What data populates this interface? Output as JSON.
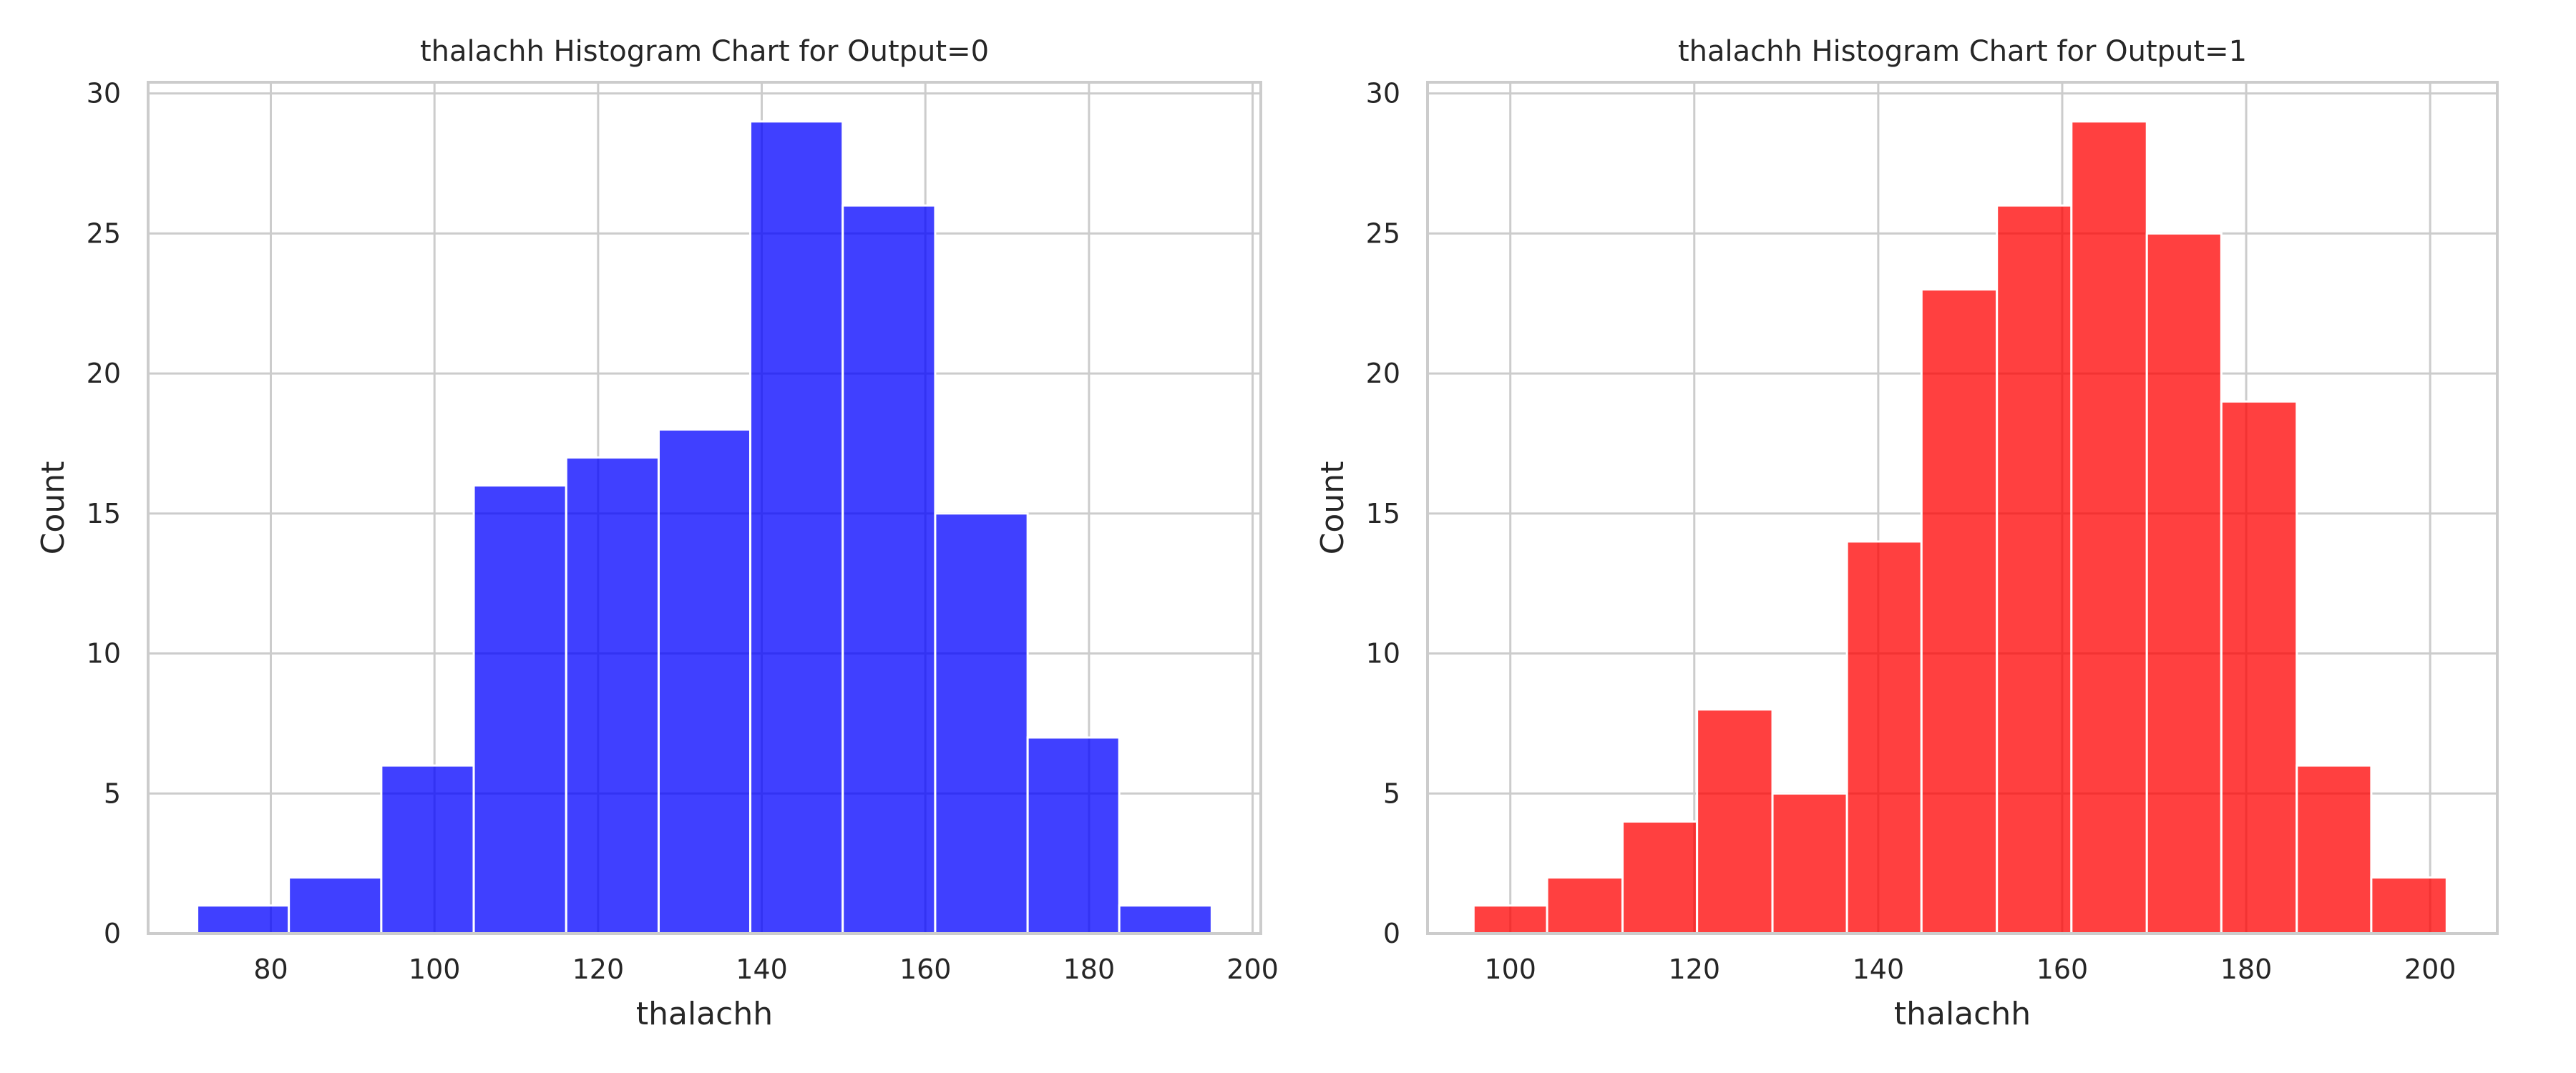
{
  "chart_data": [
    {
      "type": "bar",
      "title": "thalachh Histogram Chart for Output=0",
      "xlabel": "thalachh",
      "ylabel": "Count",
      "color": "#0000ff",
      "bar_opacity": 0.75,
      "xlim": [
        65,
        201
      ],
      "ylim": [
        0,
        30.4
      ],
      "xticks": [
        80,
        100,
        120,
        140,
        160,
        180,
        200
      ],
      "yticks": [
        0,
        5,
        10,
        15,
        20,
        25,
        30
      ],
      "grid": true,
      "bins": [
        {
          "start": 71.0,
          "end": 82.2,
          "count": 1
        },
        {
          "start": 82.2,
          "end": 93.5,
          "count": 2
        },
        {
          "start": 93.5,
          "end": 104.8,
          "count": 6
        },
        {
          "start": 104.8,
          "end": 116.1,
          "count": 16
        },
        {
          "start": 116.1,
          "end": 127.4,
          "count": 17
        },
        {
          "start": 127.4,
          "end": 138.6,
          "count": 18
        },
        {
          "start": 138.6,
          "end": 149.9,
          "count": 29
        },
        {
          "start": 149.9,
          "end": 161.2,
          "count": 26
        },
        {
          "start": 161.2,
          "end": 172.5,
          "count": 15
        },
        {
          "start": 172.5,
          "end": 183.7,
          "count": 7
        },
        {
          "start": 183.7,
          "end": 195.0,
          "count": 1
        }
      ]
    },
    {
      "type": "bar",
      "title": "thalachh Histogram Chart for Output=1",
      "xlabel": "thalachh",
      "ylabel": "Count",
      "color": "#ff0000",
      "bar_opacity": 0.75,
      "xlim": [
        91,
        207.3
      ],
      "ylim": [
        0,
        30.4
      ],
      "xticks": [
        100,
        120,
        140,
        160,
        180,
        200
      ],
      "yticks": [
        0,
        5,
        10,
        15,
        20,
        25,
        30
      ],
      "grid": true,
      "bins": [
        {
          "start": 96.0,
          "end": 104.0,
          "count": 1
        },
        {
          "start": 104.0,
          "end": 112.2,
          "count": 2
        },
        {
          "start": 112.2,
          "end": 120.3,
          "count": 4
        },
        {
          "start": 120.3,
          "end": 128.5,
          "count": 8
        },
        {
          "start": 128.5,
          "end": 136.6,
          "count": 5
        },
        {
          "start": 136.6,
          "end": 144.7,
          "count": 14
        },
        {
          "start": 144.7,
          "end": 152.9,
          "count": 23
        },
        {
          "start": 152.9,
          "end": 161.0,
          "count": 26
        },
        {
          "start": 161.0,
          "end": 169.2,
          "count": 29
        },
        {
          "start": 169.2,
          "end": 177.3,
          "count": 25
        },
        {
          "start": 177.3,
          "end": 185.5,
          "count": 19
        },
        {
          "start": 185.5,
          "end": 193.6,
          "count": 6
        },
        {
          "start": 193.6,
          "end": 201.8,
          "count": 2
        }
      ]
    }
  ]
}
